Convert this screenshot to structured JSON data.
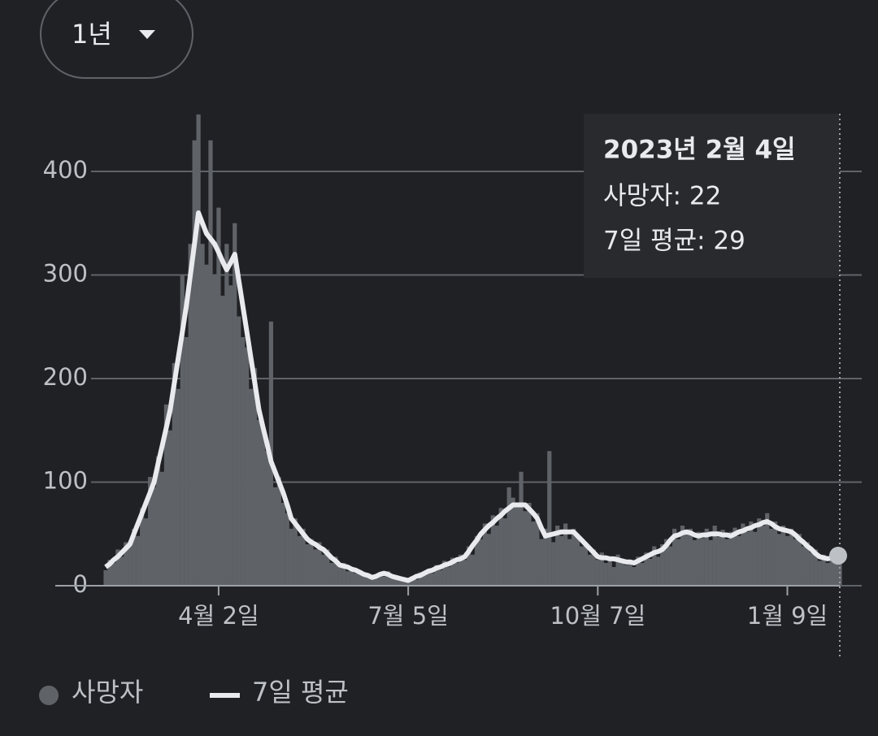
{
  "chart_data": {
    "type": "bar",
    "range_label": "1년",
    "tooltip": {
      "date": "2023년 2월 4일",
      "lines": [
        "사망자: 22",
        "7일 평균: 29"
      ]
    },
    "categories": [
      null,
      null,
      null,
      null,
      null,
      null,
      null,
      null,
      null,
      null,
      null,
      null,
      null,
      null,
      null,
      null,
      null,
      null,
      null,
      null,
      null,
      null,
      null,
      null,
      null,
      null,
      null,
      null,
      "4월 2일",
      null,
      null,
      null,
      null,
      null,
      null,
      null,
      null,
      null,
      null,
      null,
      null,
      null,
      null,
      null,
      null,
      null,
      null,
      null,
      null,
      null,
      null,
      null,
      null,
      null,
      null,
      null,
      null,
      null,
      null,
      null,
      null,
      null,
      null,
      null,
      null,
      null,
      null,
      null,
      null,
      null,
      null,
      null,
      null,
      null,
      null,
      "7월 5일",
      null,
      null,
      null,
      null,
      null,
      null,
      null,
      null,
      null,
      null,
      null,
      null,
      null,
      null,
      null,
      null,
      null,
      null,
      null,
      null,
      null,
      null,
      null,
      null,
      null,
      null,
      null,
      null,
      null,
      null,
      null,
      null,
      null,
      null,
      null,
      null,
      null,
      null,
      null,
      null,
      null,
      null,
      null,
      null,
      null,
      null,
      "10월 7일",
      null,
      null,
      null,
      null,
      null,
      null,
      null,
      null,
      null,
      null,
      null,
      null,
      null,
      null,
      null,
      null,
      null,
      null,
      null,
      null,
      null,
      null,
      null,
      null,
      null,
      null,
      null,
      null,
      null,
      null,
      null,
      null,
      null,
      null,
      null,
      null,
      null,
      null,
      null,
      null,
      null,
      null,
      null,
      null,
      null,
      null,
      "1월 9일",
      null,
      null,
      null,
      null,
      null,
      null,
      null,
      null,
      null,
      null,
      null,
      null,
      null
    ],
    "series": [
      {
        "name": "사망자",
        "type": "bar",
        "color": "#5f6368",
        "values": [
          15,
          25,
          22,
          35,
          28,
          42,
          38,
          55,
          48,
          75,
          65,
          105,
          95,
          125,
          110,
          175,
          150,
          215,
          190,
          300,
          240,
          330,
          430,
          455,
          330,
          310,
          430,
          300,
          365,
          280,
          330,
          290,
          350,
          260,
          240,
          230,
          190,
          210,
          160,
          150,
          130,
          255,
          95,
          105,
          80,
          70,
          55,
          65,
          48,
          55,
          40,
          45,
          35,
          42,
          30,
          35,
          22,
          28,
          18,
          22,
          14,
          18,
          12,
          15,
          9,
          12,
          6,
          10,
          13,
          9,
          14,
          7,
          10,
          5,
          8,
          4,
          9,
          6,
          13,
          10,
          16,
          12,
          20,
          15,
          24,
          18,
          27,
          22,
          30,
          25,
          38,
          30,
          48,
          45,
          60,
          50,
          68,
          58,
          75,
          65,
          95,
          85,
          80,
          110,
          72,
          80,
          62,
          70,
          45,
          55,
          130,
          42,
          58,
          48,
          60,
          45,
          55,
          50,
          38,
          42,
          30,
          35,
          25,
          32,
          22,
          28,
          18,
          30,
          26,
          20,
          25,
          18,
          28,
          22,
          32,
          26,
          38,
          28,
          40,
          45,
          38,
          55,
          45,
          58,
          50,
          55,
          44,
          52,
          46,
          55,
          44,
          58,
          47,
          54,
          45,
          52,
          56,
          48,
          60,
          52,
          62,
          52,
          65,
          58,
          70,
          55,
          62,
          50,
          58,
          48,
          55,
          45,
          50,
          38,
          42,
          32,
          35,
          24,
          30,
          22,
          32,
          25,
          22
        ]
      },
      {
        "name": "7일 평균",
        "type": "line",
        "color": "#e8eaed",
        "values": [
          18,
          21,
          25,
          28,
          32,
          36,
          40,
          50,
          60,
          70,
          80,
          90,
          100,
          118,
          135,
          152,
          170,
          195,
          220,
          245,
          270,
          300,
          330,
          360,
          350,
          340,
          335,
          330,
          322,
          313,
          305,
          312,
          320,
          295,
          270,
          245,
          220,
          195,
          170,
          153,
          137,
          120,
          110,
          100,
          90,
          78,
          65,
          60,
          55,
          50,
          45,
          42,
          40,
          37,
          35,
          31,
          27,
          24,
          20,
          19,
          18,
          16,
          15,
          13,
          11,
          10,
          8,
          9,
          11,
          12,
          11,
          9,
          8,
          7,
          6,
          5,
          7,
          9,
          10,
          12,
          14,
          15,
          17,
          18,
          20,
          21,
          23,
          25,
          26,
          28,
          33,
          39,
          44,
          50,
          54,
          58,
          61,
          65,
          68,
          72,
          75,
          78,
          78,
          78,
          78,
          74,
          70,
          65,
          56,
          48,
          49,
          50,
          51,
          52,
          52,
          52,
          52,
          48,
          44,
          40,
          36,
          32,
          28,
          27,
          27,
          26,
          26,
          25,
          24,
          23,
          23,
          22,
          24,
          26,
          28,
          30,
          32,
          33,
          35,
          39,
          44,
          48,
          49,
          51,
          52,
          51,
          49,
          48,
          49,
          49,
          50,
          50,
          50,
          49,
          49,
          48,
          50,
          52,
          53,
          55,
          56,
          58,
          59,
          61,
          62,
          60,
          57,
          55,
          54,
          53,
          52,
          49,
          45,
          42,
          38,
          35,
          31,
          28,
          27,
          26,
          27,
          28,
          29
        ]
      }
    ],
    "ylim": [
      0,
      460
    ],
    "yticks": [
      0,
      100,
      200,
      300,
      400
    ],
    "grid": true
  }
}
